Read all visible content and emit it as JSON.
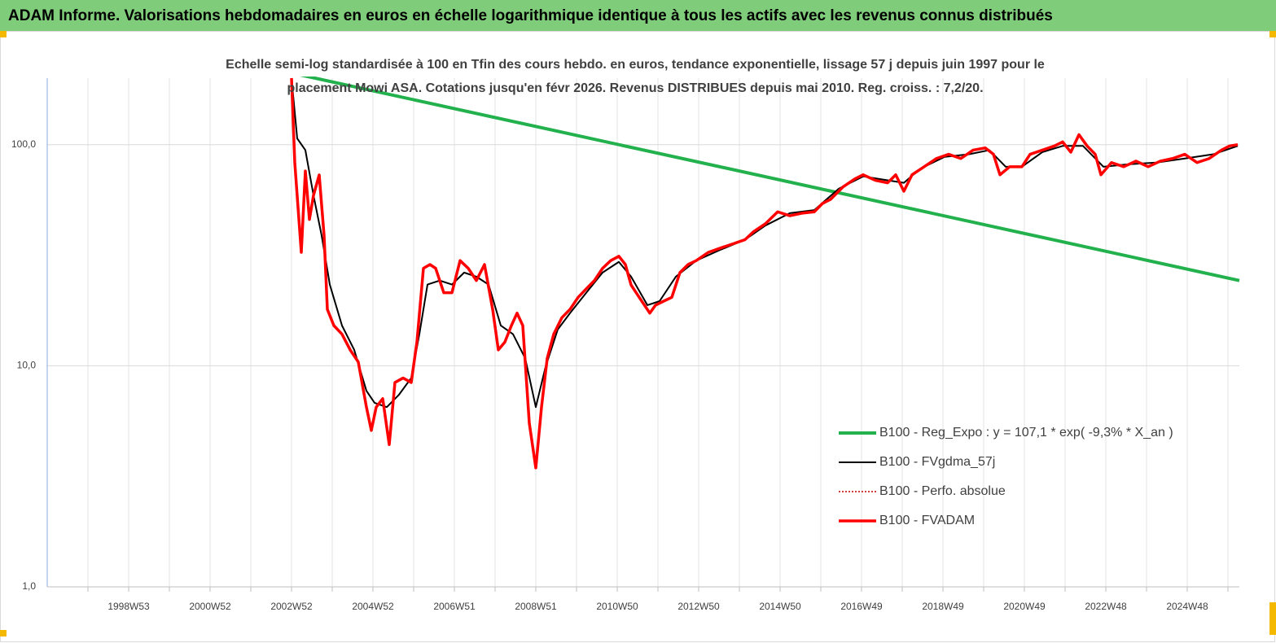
{
  "chart_data": {
    "type": "line",
    "title": "ADAM Informe. Valorisations hebdomadaires en euros en échelle logarithmique identique à tous les actifs avec les revenus connus distribués",
    "subtitle": [
      "Echelle semi-log standardisée à 100 en Tfin des cours hebdo. en euros, tendance exponentielle, lissage 57 j depuis juin 1997 pour le",
      "placement Mowi ASA. Cotations jusqu'en févr 2026. Revenus DISTRIBUES depuis mai 2010. Reg. croiss. : 7,2/20."
    ],
    "log_scale": true,
    "grid": true,
    "legend": "right",
    "xlim": [
      1997.0,
      2026.28
    ],
    "ylim": [
      1,
      200
    ],
    "yticks": [
      {
        "value": 1,
        "label": "1,0"
      },
      {
        "value": 10,
        "label": "10,0"
      },
      {
        "value": 100,
        "label": "100,0"
      }
    ],
    "xticks": [
      {
        "value": 1998,
        "label": null
      },
      {
        "value": 1999,
        "label": "1998W53"
      },
      {
        "value": 2000,
        "label": null
      },
      {
        "value": 2001,
        "label": "2000W52"
      },
      {
        "value": 2002,
        "label": null
      },
      {
        "value": 2003,
        "label": "2002W52"
      },
      {
        "value": 2004,
        "label": null
      },
      {
        "value": 2005,
        "label": "2004W52"
      },
      {
        "value": 2006,
        "label": null
      },
      {
        "value": 2007,
        "label": "2006W51"
      },
      {
        "value": 2008,
        "label": null
      },
      {
        "value": 2009,
        "label": "2008W51"
      },
      {
        "value": 2010,
        "label": null
      },
      {
        "value": 2011,
        "label": "2010W50"
      },
      {
        "value": 2012,
        "label": null
      },
      {
        "value": 2013,
        "label": "2012W50"
      },
      {
        "value": 2014,
        "label": null
      },
      {
        "value": 2015,
        "label": "2014W50"
      },
      {
        "value": 2016,
        "label": null
      },
      {
        "value": 2017,
        "label": "2016W49"
      },
      {
        "value": 2018,
        "label": null
      },
      {
        "value": 2019,
        "label": "2018W49"
      },
      {
        "value": 2020,
        "label": null
      },
      {
        "value": 2021,
        "label": "2020W49"
      },
      {
        "value": 2022,
        "label": null
      },
      {
        "value": 2023,
        "label": "2022W48"
      },
      {
        "value": 2024,
        "label": null
      },
      {
        "value": 2025,
        "label": "2024W48"
      },
      {
        "value": 2026,
        "label": null
      }
    ],
    "x": [
      2003.0,
      2003.08,
      2003.24,
      2003.34,
      2003.44,
      2003.54,
      2003.68,
      2003.8,
      2003.88,
      2004.04,
      2004.24,
      2004.44,
      2004.64,
      2004.84,
      2004.96,
      2005.08,
      2005.24,
      2005.4,
      2005.54,
      2005.74,
      2005.94,
      2006.08,
      2006.24,
      2006.4,
      2006.54,
      2006.74,
      2006.94,
      2007.14,
      2007.34,
      2007.54,
      2007.74,
      2007.94,
      2008.08,
      2008.24,
      2008.4,
      2008.54,
      2008.68,
      2008.84,
      2009.0,
      2009.14,
      2009.28,
      2009.44,
      2009.64,
      2009.84,
      2010.04,
      2010.24,
      2010.44,
      2010.64,
      2010.84,
      2011.04,
      2011.2,
      2011.34,
      2011.54,
      2011.8,
      2011.94,
      2012.14,
      2012.34,
      2012.54,
      2012.74,
      2012.94,
      2013.24,
      2013.54,
      2013.84,
      2014.14,
      2014.34,
      2014.64,
      2014.94,
      2015.24,
      2015.54,
      2015.84,
      2016.04,
      2016.24,
      2016.54,
      2016.84,
      2017.04,
      2017.34,
      2017.64,
      2017.84,
      2018.04,
      2018.24,
      2018.54,
      2018.84,
      2019.14,
      2019.44,
      2019.74,
      2020.04,
      2020.24,
      2020.4,
      2020.64,
      2020.94,
      2021.14,
      2021.44,
      2021.74,
      2021.94,
      2022.14,
      2022.34,
      2022.54,
      2022.74,
      2022.88,
      2023.14,
      2023.44,
      2023.74,
      2024.04,
      2024.34,
      2024.64,
      2024.94,
      2025.24,
      2025.54,
      2025.84,
      2026.04,
      2026.24
    ],
    "series": [
      {
        "name": "B100 - Reg_Expo : y = 107,1 * exp( -9,3% *  X_an )",
        "color": "#22b14c",
        "width": 4,
        "line_style": "solid",
        "x": [
          2002.8,
          2026.28
        ],
        "values": [
          215,
          24.3
        ]
      },
      {
        "name": "B100 - FVgdma_57j",
        "color": "#000000",
        "width": 2,
        "line_style": "solid",
        "x": [
          2003.0,
          2003.14,
          2003.34,
          2003.54,
          2003.74,
          2003.94,
          2004.24,
          2004.54,
          2004.84,
          2005.04,
          2005.34,
          2005.64,
          2005.94,
          2006.14,
          2006.34,
          2006.64,
          2006.94,
          2007.24,
          2007.54,
          2007.84,
          2008.14,
          2008.44,
          2008.74,
          2009.0,
          2009.24,
          2009.54,
          2009.84,
          2010.24,
          2010.64,
          2011.04,
          2011.34,
          2011.74,
          2012.04,
          2012.44,
          2012.94,
          2013.54,
          2014.14,
          2014.64,
          2015.24,
          2015.84,
          2016.44,
          2017.04,
          2017.64,
          2018.04,
          2018.44,
          2019.04,
          2019.64,
          2020.14,
          2020.54,
          2020.94,
          2021.44,
          2021.94,
          2022.44,
          2022.94,
          2023.54,
          2024.24,
          2024.94,
          2025.64,
          2026.24
        ],
        "values": [
          200,
          106.7,
          94.5,
          59,
          38.8,
          23.3,
          15.2,
          11.8,
          7.7,
          6.8,
          6.5,
          7.4,
          8.8,
          13.9,
          23.3,
          24.3,
          23.3,
          26.4,
          25.3,
          23.3,
          15.2,
          13.9,
          10.8,
          6.5,
          9.9,
          14.6,
          17.3,
          21.4,
          26.4,
          29.5,
          25.3,
          18.8,
          19.6,
          25.3,
          29.9,
          33.5,
          37.2,
          43.1,
          49,
          50.6,
          63.2,
          71.9,
          69,
          67.2,
          77.8,
          88.1,
          90.5,
          94.5,
          79.5,
          79.5,
          92.5,
          98.7,
          98.7,
          79.5,
          81.5,
          83,
          86.6,
          90.5,
          98.7
        ]
      },
      {
        "name": "B100 - Perfo. absolue",
        "color": "#c00000",
        "width": 1.5,
        "line_style": "dotted",
        "values": [
          200,
          83,
          32.6,
          76,
          45.9,
          59,
          73,
          38.8,
          18,
          15.2,
          13.9,
          11.8,
          10.4,
          6.5,
          5.1,
          6.5,
          7.1,
          4.4,
          8.4,
          8.8,
          8.4,
          12.8,
          27.6,
          28.7,
          27.6,
          21.4,
          21.4,
          29.9,
          27.6,
          24.3,
          28.7,
          18,
          11.8,
          12.8,
          15.2,
          17.3,
          15.2,
          5.5,
          3.45,
          6.5,
          10.8,
          13.9,
          16.5,
          18,
          20.4,
          22.3,
          24.3,
          27.6,
          29.9,
          31.3,
          28.7,
          23.2,
          20.4,
          17.3,
          18.8,
          19.6,
          20.4,
          26.4,
          28.7,
          29.9,
          32.6,
          34.1,
          35.6,
          37.2,
          40.3,
          43.9,
          49.7,
          47.7,
          49,
          49.7,
          54.2,
          56.6,
          64.3,
          70.1,
          73.1,
          69,
          67.2,
          73.1,
          61.6,
          73.1,
          79.5,
          86.6,
          90.5,
          86.6,
          94.5,
          96.7,
          90.5,
          73.1,
          79.5,
          79.5,
          90.5,
          94.5,
          98.7,
          103,
          92.5,
          111,
          98.7,
          90.5,
          73.1,
          83,
          79.5,
          84.3,
          79.5,
          84.3,
          86.6,
          90.5,
          83,
          86.6,
          94.5,
          98.7,
          100
        ]
      },
      {
        "name": "B100 - FVADAM",
        "color": "#ff0000",
        "width": 3.5,
        "line_style": "solid",
        "values": [
          200,
          83,
          32.6,
          76,
          45.9,
          59,
          73,
          38.8,
          18,
          15.2,
          13.9,
          11.8,
          10.4,
          6.5,
          5.1,
          6.5,
          7.1,
          4.4,
          8.4,
          8.8,
          8.4,
          12.8,
          27.6,
          28.7,
          27.6,
          21.4,
          21.4,
          29.9,
          27.6,
          24.3,
          28.7,
          18,
          11.8,
          12.8,
          15.2,
          17.3,
          15.2,
          5.5,
          3.45,
          6.5,
          10.8,
          13.9,
          16.5,
          18,
          20.4,
          22.3,
          24.3,
          27.6,
          29.9,
          31.3,
          28.7,
          23.2,
          20.4,
          17.3,
          18.8,
          19.6,
          20.4,
          26.4,
          28.7,
          29.9,
          32.6,
          34.1,
          35.6,
          37.2,
          40.3,
          43.9,
          49.7,
          47.7,
          49,
          49.7,
          54.2,
          56.6,
          64.3,
          70.1,
          73.1,
          69,
          67.2,
          73.1,
          61.6,
          73.1,
          79.5,
          86.6,
          90.5,
          86.6,
          94.5,
          96.7,
          90.5,
          73.1,
          79.5,
          79.5,
          90.5,
          94.5,
          98.7,
          103,
          92.5,
          111,
          98.7,
          90.5,
          73.1,
          83,
          79.5,
          84.3,
          79.5,
          84.3,
          86.6,
          90.5,
          83,
          86.6,
          94.5,
          98.7,
          100
        ]
      }
    ]
  }
}
